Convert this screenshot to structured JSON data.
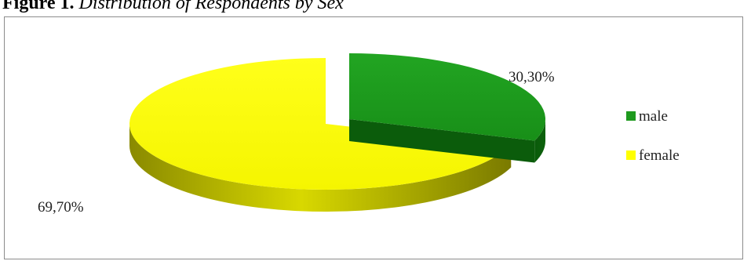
{
  "figure": {
    "lead": "Figure 1.",
    "caption": "Distribution of Respondents by Sex"
  },
  "chart_data": {
    "type": "pie",
    "style": "3d-exploded",
    "categories": [
      "male",
      "female"
    ],
    "values": [
      30.3,
      69.7
    ],
    "labels": [
      "30,30%",
      "69,70%"
    ],
    "colors": [
      "#1e9a1e",
      "#ffff00"
    ],
    "legend": {
      "position": "right",
      "entries": [
        "male",
        "female"
      ]
    }
  }
}
